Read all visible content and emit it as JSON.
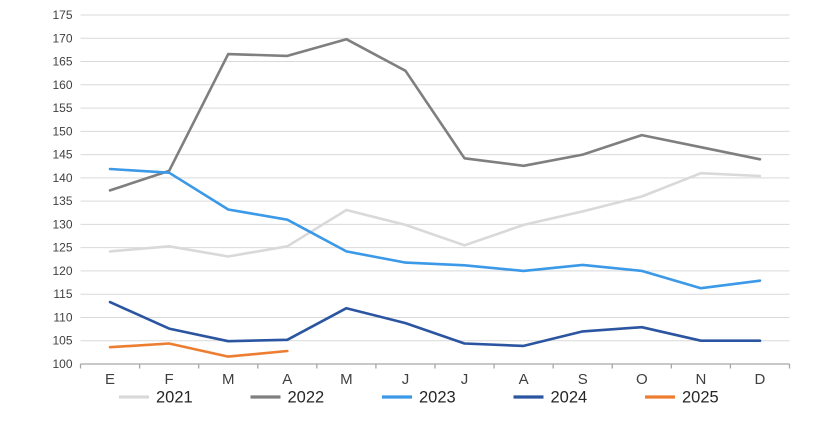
{
  "chart_data": {
    "type": "line",
    "title": "",
    "xlabel": "",
    "ylabel": "",
    "categories": [
      "E",
      "F",
      "M",
      "A",
      "M",
      "J",
      "J",
      "A",
      "S",
      "O",
      "N",
      "D"
    ],
    "y_axis": {
      "min": 100,
      "max": 175,
      "step": 5
    },
    "grid": true,
    "legend_position": "bottom",
    "series": [
      {
        "name": "2021",
        "color": "#D9D9D9",
        "values": [
          124.2,
          125.3,
          123.1,
          125.3,
          133.1,
          129.9,
          125.5,
          129.9,
          132.8,
          136.0,
          141.0,
          140.4
        ]
      },
      {
        "name": "2022",
        "color": "#7F7F7F",
        "values": [
          137.3,
          141.5,
          166.6,
          166.2,
          169.8,
          163.0,
          144.2,
          142.6,
          145.0,
          149.2,
          146.6,
          144.0
        ]
      },
      {
        "name": "2023",
        "color": "#3B99E8",
        "values": [
          141.9,
          141.1,
          133.2,
          131.0,
          124.2,
          121.8,
          121.2,
          120.0,
          121.3,
          120.0,
          116.3,
          117.9
        ]
      },
      {
        "name": "2024",
        "color": "#2B55A0",
        "values": [
          113.3,
          107.6,
          104.9,
          105.2,
          112.0,
          108.8,
          104.4,
          103.9,
          107.0,
          107.9,
          105.0,
          105.0
        ]
      },
      {
        "name": "2025",
        "color": "#ED7D31",
        "values": [
          103.6,
          104.4,
          101.6,
          102.8
        ]
      }
    ],
    "axis_color": "#a6a6a6",
    "gridline_color": "#d9d9d9",
    "tick_label_color": "#404040",
    "legend_label_color": "#262626"
  }
}
